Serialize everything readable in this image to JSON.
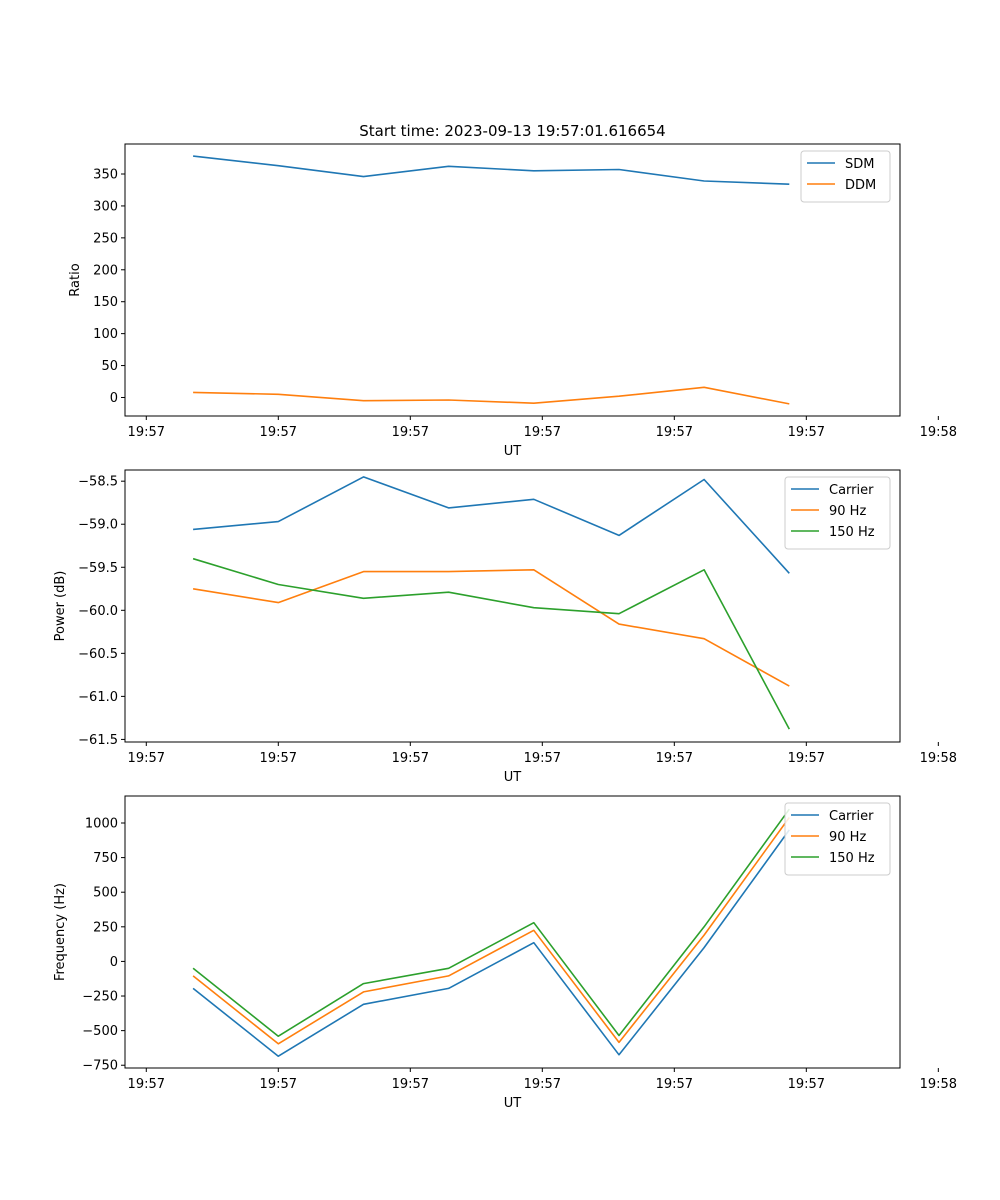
{
  "figure_title": "Start time: 2023-09-13 19:57:01.616654",
  "colors": {
    "blue": "#1f77b4",
    "orange": "#ff7f0e",
    "green": "#2ca02c",
    "axis": "#000000",
    "legend_border": "#cccccc"
  },
  "chart_data": [
    {
      "type": "line",
      "title": "Start time: 2023-09-13 19:57:01.616654",
      "xlabel": "UT",
      "ylabel": "Ratio",
      "x": [
        1,
        2,
        3,
        4,
        5,
        6,
        7,
        8
      ],
      "xlim": [
        0.2,
        9.3
      ],
      "xticks": [
        0.45,
        2.0,
        3.55,
        5.1,
        6.65,
        8.2,
        9.75
      ],
      "xtick_labels": [
        "19:57",
        "19:57",
        "19:57",
        "19:57",
        "19:57",
        "19:57",
        "19:58"
      ],
      "ylim": [
        -29,
        397
      ],
      "yticks": [
        0,
        50,
        100,
        150,
        200,
        250,
        300,
        350
      ],
      "ytick_labels": [
        "0",
        "50",
        "100",
        "150",
        "200",
        "250",
        "300",
        "350"
      ],
      "legend_position": "top-right",
      "series": [
        {
          "name": "SDM",
          "color": "#1f77b4",
          "values": [
            378,
            363,
            346,
            362,
            355,
            357,
            339,
            334
          ]
        },
        {
          "name": "DDM",
          "color": "#ff7f0e",
          "values": [
            8,
            5,
            -5,
            -4,
            -9,
            2,
            16,
            -10
          ]
        }
      ]
    },
    {
      "type": "line",
      "title": "",
      "xlabel": "UT",
      "ylabel": "Power (dB)",
      "x": [
        1,
        2,
        3,
        4,
        5,
        6,
        7,
        8
      ],
      "xlim": [
        0.2,
        9.3
      ],
      "xticks": [
        0.45,
        2.0,
        3.55,
        5.1,
        6.65,
        8.2,
        9.75
      ],
      "xtick_labels": [
        "19:57",
        "19:57",
        "19:57",
        "19:57",
        "19:57",
        "19:57",
        "19:58"
      ],
      "ylim": [
        -61.53,
        -58.37
      ],
      "yticks": [
        -58.5,
        -59.0,
        -59.5,
        -60.0,
        -60.5,
        -61.0,
        -61.5
      ],
      "ytick_labels": [
        "−58.5",
        "−59.0",
        "−59.5",
        "−60.0",
        "−60.5",
        "−61.0",
        "−61.5"
      ],
      "legend_position": "top-right",
      "series": [
        {
          "name": "Carrier",
          "color": "#1f77b4",
          "values": [
            -59.06,
            -58.97,
            -58.45,
            -58.81,
            -58.71,
            -59.13,
            -58.48,
            -59.57
          ]
        },
        {
          "name": "90 Hz",
          "color": "#ff7f0e",
          "values": [
            -59.75,
            -59.91,
            -59.55,
            -59.55,
            -59.53,
            -60.16,
            -60.33,
            -60.88
          ]
        },
        {
          "name": "150 Hz",
          "color": "#2ca02c",
          "values": [
            -59.4,
            -59.7,
            -59.86,
            -59.79,
            -59.97,
            -60.04,
            -59.53,
            -61.38
          ]
        }
      ]
    },
    {
      "type": "line",
      "title": "",
      "xlabel": "UT",
      "ylabel": "Frequency (Hz)",
      "x": [
        1,
        2,
        3,
        4,
        5,
        6,
        7,
        8
      ],
      "xlim": [
        0.2,
        9.3
      ],
      "xticks": [
        0.45,
        2.0,
        3.55,
        5.1,
        6.65,
        8.2,
        9.75
      ],
      "xtick_labels": [
        "19:57",
        "19:57",
        "19:57",
        "19:57",
        "19:57",
        "19:57",
        "19:58"
      ],
      "ylim": [
        -770,
        1195
      ],
      "yticks": [
        -750,
        -500,
        -250,
        0,
        250,
        500,
        750,
        1000
      ],
      "ytick_labels": [
        "−750",
        "−500",
        "−250",
        "0",
        "250",
        "500",
        "750",
        "1000"
      ],
      "legend_position": "top-right",
      "series": [
        {
          "name": "Carrier",
          "color": "#1f77b4",
          "values": [
            -195,
            -685,
            -310,
            -195,
            135,
            -675,
            100,
            950
          ]
        },
        {
          "name": "90 Hz",
          "color": "#ff7f0e",
          "values": [
            -105,
            -595,
            -220,
            -105,
            225,
            -585,
            190,
            1040
          ]
        },
        {
          "name": "150 Hz",
          "color": "#2ca02c",
          "values": [
            -50,
            -540,
            -160,
            -50,
            280,
            -535,
            250,
            1100
          ]
        }
      ]
    }
  ]
}
